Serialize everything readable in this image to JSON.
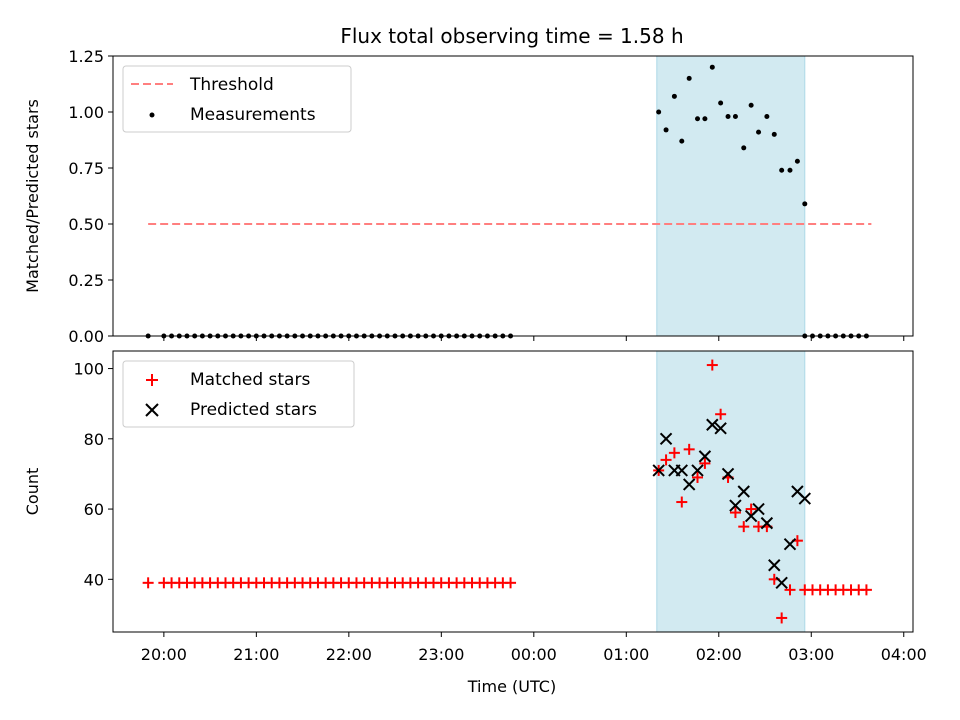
{
  "title": "Flux total observing time = 1.58 h",
  "xlabel": "Time (UTC)",
  "x_tick_labels": [
    "20:00",
    "21:00",
    "22:00",
    "23:00",
    "00:00",
    "01:00",
    "02:00",
    "03:00",
    "04:00"
  ],
  "colors": {
    "threshold": "#ff7f7f",
    "measurements": "#000000",
    "matched": "#ff0000",
    "predicted": "#000000",
    "observing_window": "#add8e6"
  },
  "chart_data": [
    {
      "type": "scatter",
      "ylabel": "Matched/Predicted stars",
      "xlim": [
        19.45,
        28.1
      ],
      "ylim": [
        0,
        1.25
      ],
      "y_ticks": [
        0.0,
        0.25,
        0.5,
        0.75,
        1.0,
        1.25
      ],
      "y_tick_labels": [
        "0.00",
        "0.25",
        "0.50",
        "0.75",
        "1.00",
        "1.25"
      ],
      "legend": {
        "placement": "top-left",
        "entries": [
          "Threshold",
          "Measurements"
        ]
      },
      "shaded_region": {
        "x_start": 25.33,
        "x_end": 26.93
      },
      "threshold": {
        "name": "Threshold",
        "y": 0.5,
        "x_start": 19.83,
        "x_end": 27.65
      },
      "measurements": {
        "name": "Measurements",
        "zero_series": {
          "y": 0,
          "ranges": [
            [
              19.83,
              19.83
            ],
            [
              20.0,
              23.83
            ]
          ],
          "step": 0.0833,
          "range_after": [
            26.93,
            27.67
          ]
        },
        "points": [
          [
            25.35,
            1.0
          ],
          [
            25.43,
            0.92
          ],
          [
            25.52,
            1.07
          ],
          [
            25.6,
            0.87
          ],
          [
            25.68,
            1.15
          ],
          [
            25.77,
            0.97
          ],
          [
            25.85,
            0.97
          ],
          [
            25.93,
            1.2
          ],
          [
            26.02,
            1.04
          ],
          [
            26.1,
            0.98
          ],
          [
            26.18,
            0.98
          ],
          [
            26.27,
            0.84
          ],
          [
            26.35,
            1.03
          ],
          [
            26.43,
            0.91
          ],
          [
            26.52,
            0.98
          ],
          [
            26.6,
            0.9
          ],
          [
            26.68,
            0.74
          ],
          [
            26.77,
            0.74
          ],
          [
            26.85,
            0.78
          ],
          [
            26.93,
            0.59
          ]
        ]
      }
    },
    {
      "type": "scatter",
      "ylabel": "Count",
      "xlim": [
        19.45,
        28.1
      ],
      "ylim": [
        25,
        105
      ],
      "y_ticks": [
        40,
        60,
        80,
        100
      ],
      "y_tick_labels": [
        "40",
        "60",
        "80",
        "100"
      ],
      "legend": {
        "placement": "top-left",
        "entries": [
          "Matched stars",
          "Predicted stars"
        ]
      },
      "shaded_region": {
        "x_start": 25.33,
        "x_end": 26.93
      },
      "matched": {
        "name": "Matched stars",
        "flat_before": {
          "y": 39,
          "x_values_start": 19.83,
          "ranges": [
            [
              20.0,
              23.83
            ]
          ],
          "step": 0.0833
        },
        "points": [
          [
            25.35,
            71
          ],
          [
            25.43,
            74
          ],
          [
            25.52,
            76
          ],
          [
            25.6,
            62
          ],
          [
            25.68,
            77
          ],
          [
            25.77,
            69
          ],
          [
            25.85,
            73
          ],
          [
            25.93,
            101
          ],
          [
            26.02,
            87
          ],
          [
            26.1,
            69
          ],
          [
            26.18,
            59
          ],
          [
            26.27,
            55
          ],
          [
            26.35,
            60
          ],
          [
            26.43,
            55
          ],
          [
            26.52,
            55
          ],
          [
            26.6,
            40
          ],
          [
            26.68,
            29
          ],
          [
            26.77,
            37
          ],
          [
            26.85,
            51
          ]
        ],
        "flat_after": {
          "y": 37,
          "range": [
            26.93,
            27.67
          ],
          "step": 0.0833
        }
      },
      "predicted": {
        "name": "Predicted stars",
        "points": [
          [
            25.35,
            71
          ],
          [
            25.43,
            80
          ],
          [
            25.52,
            71
          ],
          [
            25.6,
            71
          ],
          [
            25.68,
            67
          ],
          [
            25.77,
            71
          ],
          [
            25.85,
            75
          ],
          [
            25.93,
            84
          ],
          [
            26.02,
            83
          ],
          [
            26.1,
            70
          ],
          [
            26.18,
            61
          ],
          [
            26.27,
            65
          ],
          [
            26.35,
            58
          ],
          [
            26.43,
            60
          ],
          [
            26.52,
            56
          ],
          [
            26.6,
            44
          ],
          [
            26.68,
            39
          ],
          [
            26.77,
            50
          ],
          [
            26.85,
            65
          ],
          [
            26.93,
            63
          ]
        ]
      }
    }
  ]
}
